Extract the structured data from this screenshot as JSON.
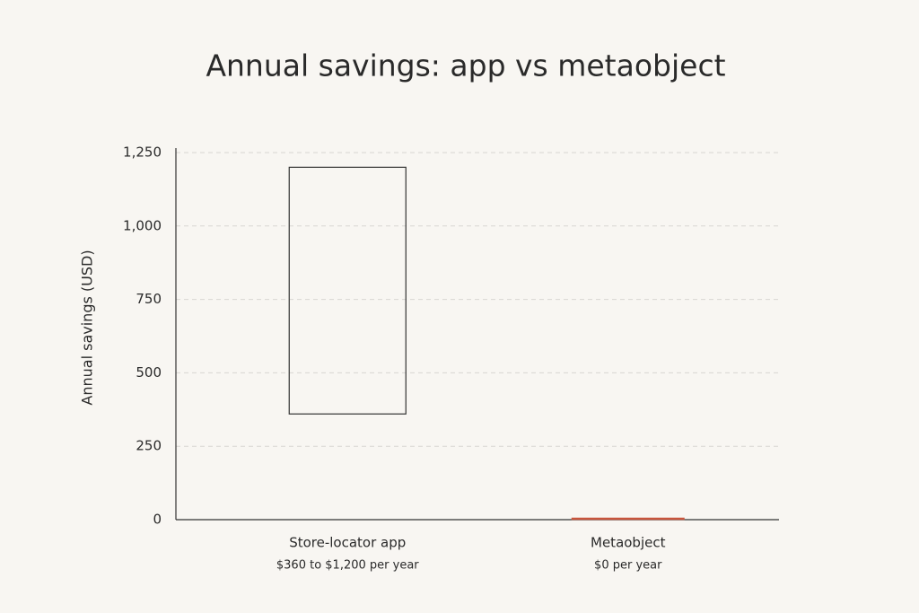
{
  "chart_data": {
    "type": "range-bar",
    "title": "Annual savings: app vs metaobject",
    "y_label": "Annual savings (USD)",
    "categories": [
      "Store-locator app",
      "Metaobject"
    ],
    "sublabels": [
      "$360 to $1,200 per year",
      "$0 per year"
    ],
    "lows": [
      360,
      0
    ],
    "highs": [
      1200,
      0
    ],
    "colors": [
      "#333333",
      "#c8553d"
    ],
    "ylim": [
      0,
      1250
    ],
    "yticks": [
      0,
      250,
      500,
      750,
      {
        "value": 1000,
        "label": "1,000"
      },
      {
        "value": 1250,
        "label": "1,250"
      }
    ],
    "grid": true
  }
}
